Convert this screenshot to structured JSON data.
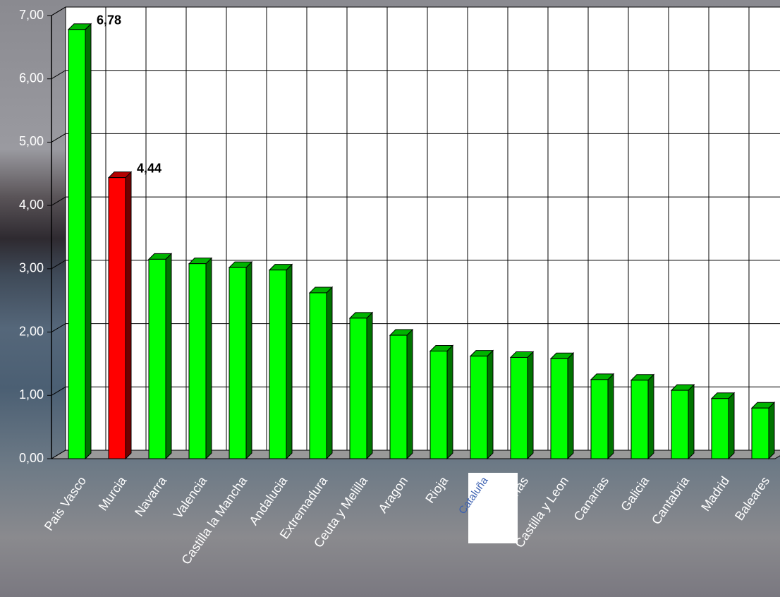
{
  "chart_data": {
    "type": "bar3d",
    "categories": [
      "Pais Vasco",
      "Murcia",
      "Navarra",
      "Valencia",
      "Castilla la Mancha",
      "Andalucia",
      "Extremadura",
      "Ceuta y Melilla",
      "Aragon",
      "Rioja",
      "Cataluña",
      "Asturias",
      "Castilla y Leon",
      "Canarias",
      "Galicia",
      "Cantabria",
      "Madrid",
      "Baleares"
    ],
    "values": [
      6.78,
      4.44,
      3.15,
      3.08,
      3.02,
      2.98,
      2.62,
      2.22,
      1.95,
      1.7,
      1.62,
      1.6,
      1.58,
      1.25,
      1.24,
      1.08,
      0.95,
      0.8
    ],
    "value_labels": [
      "6,78",
      "4,44",
      null,
      null,
      null,
      null,
      null,
      null,
      null,
      null,
      null,
      null,
      null,
      null,
      null,
      null,
      null,
      null
    ],
    "colors": [
      "#00ff00",
      "#ff0000",
      "#00ff00",
      "#00ff00",
      "#00ff00",
      "#00ff00",
      "#00ff00",
      "#00ff00",
      "#00ff00",
      "#00ff00",
      "#00ff00",
      "#00ff00",
      "#00ff00",
      "#00ff00",
      "#00ff00",
      "#00ff00",
      "#00ff00",
      "#00ff00"
    ],
    "ylim": [
      0,
      7
    ],
    "yticks": [
      {
        "value": 0,
        "label": "0,00"
      },
      {
        "value": 1,
        "label": "1,00"
      },
      {
        "value": 2,
        "label": "2,00"
      },
      {
        "value": 3,
        "label": "3,00"
      },
      {
        "value": 4,
        "label": "4,00"
      },
      {
        "value": 5,
        "label": "5,00"
      },
      {
        "value": 6,
        "label": "6,00"
      },
      {
        "value": 7,
        "label": "7,00"
      }
    ],
    "grid": true
  }
}
